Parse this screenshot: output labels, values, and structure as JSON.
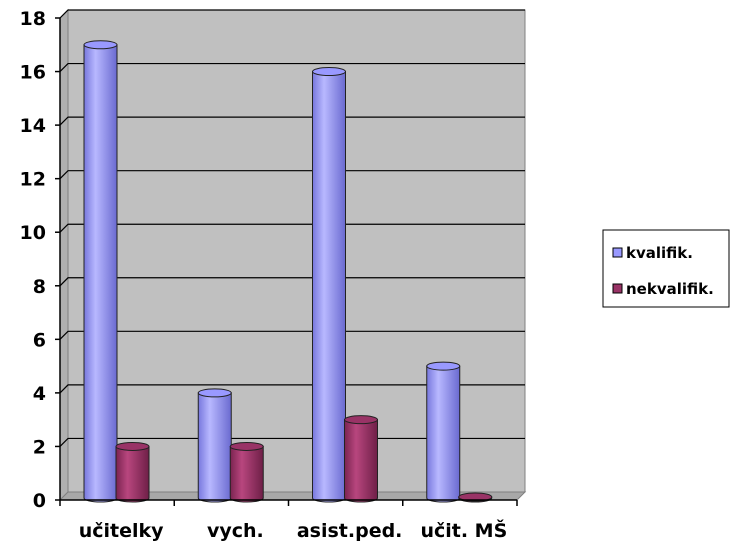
{
  "chart_data": {
    "type": "bar",
    "categories": [
      "učitelky",
      "vych.",
      "asist.ped.",
      "učit. MŠ"
    ],
    "series": [
      {
        "name": "kvalifik.",
        "values": [
          17,
          4,
          16,
          5
        ],
        "color": "#9999ff"
      },
      {
        "name": "nekvalifik.",
        "values": [
          2,
          2,
          3,
          0
        ],
        "color": "#993366"
      }
    ],
    "ylim": [
      0,
      18
    ],
    "yticks": [
      0,
      2,
      4,
      6,
      8,
      10,
      12,
      14,
      16,
      18
    ],
    "grid": true,
    "legend": "right",
    "wall_color": "#c0c0c0"
  }
}
